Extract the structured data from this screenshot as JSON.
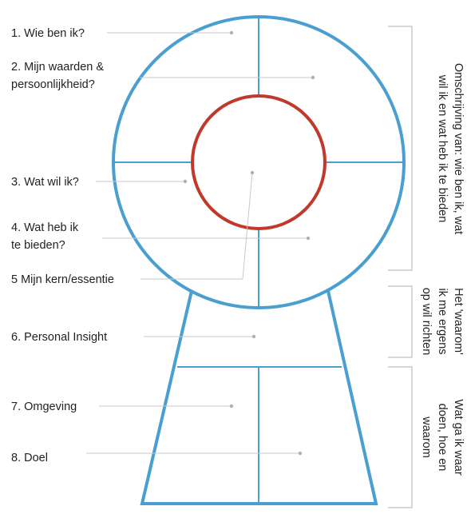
{
  "labels": {
    "wie_ben_ik": "1. Wie ben ik?",
    "waarden_line1": "2. Mijn waarden &",
    "waarden_line2": "persoonlijkheid?",
    "wat_wil_ik": "3. Wat wil ik?",
    "bieden_line1": "4. Wat heb ik",
    "bieden_line2": "te bieden?",
    "kern": "5 Mijn kern/essentie",
    "insight": "6. Personal Insight",
    "omgeving": "7. Omgeving",
    "doel": "8. Doel"
  },
  "side_notes": {
    "top_line1": "Omschrijving van: wie ben ik, wat",
    "top_line2": "wil ik en wat heb ik te bieden",
    "middle_line1": "Het 'waarom'",
    "middle_line2": "ik me ergens",
    "middle_line3": "op wil richten",
    "bottom_line1": "Wat ga ik waar",
    "bottom_line2": "doen, hoe en",
    "bottom_line3": "waarom"
  },
  "colors": {
    "outline_blue": "#4a9fd0",
    "inner_red": "#c0392b",
    "leader_gray": "#c8c8c8",
    "bracket_gray": "#bfbfbf",
    "text": "#222222"
  }
}
